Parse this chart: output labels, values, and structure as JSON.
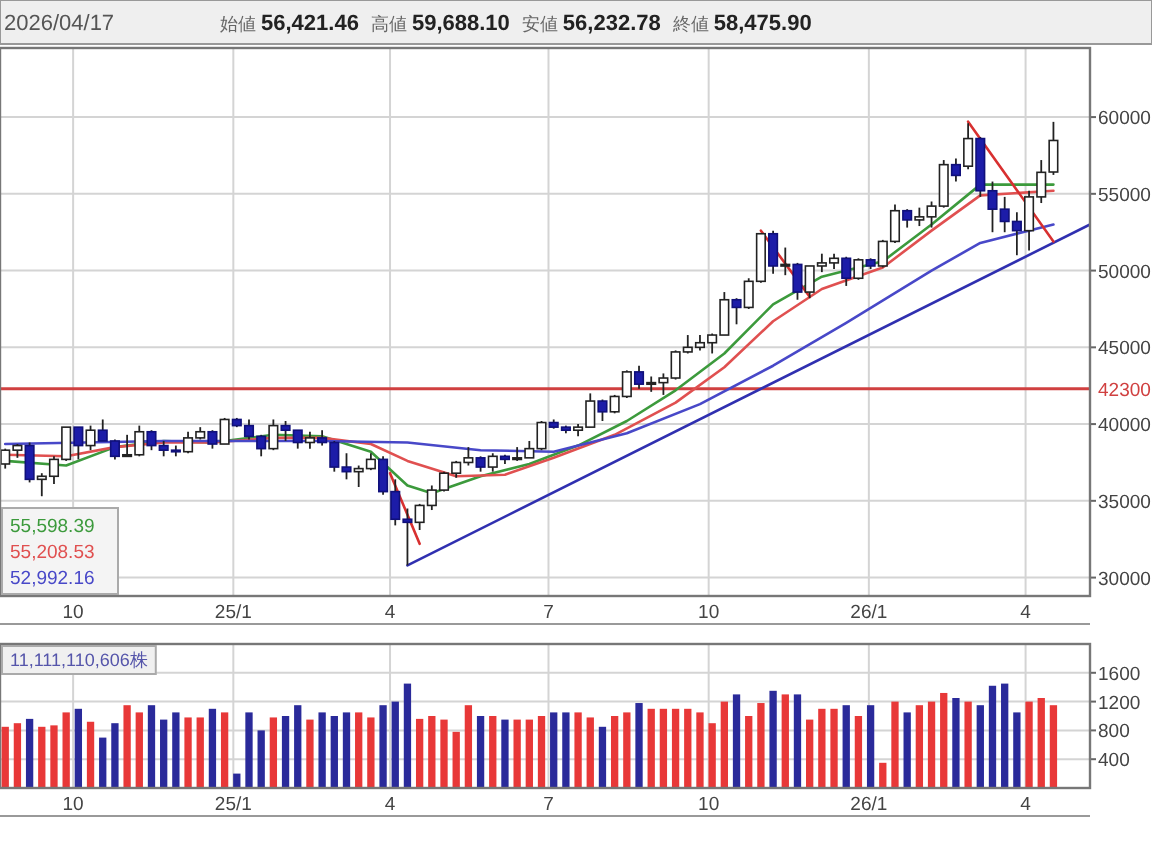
{
  "chart_data": [
    {
      "type": "candlestick",
      "title": "2026/04/17",
      "annotations": [
        "始値 56,421.46",
        "高値 59,688.10",
        "安値 56,232.78",
        "終値 58,475.90"
      ],
      "x": [
        "2024-08-23",
        "2024-08-30",
        "2024-09-06",
        "2024-09-13",
        "2024-09-20",
        "2024-09-27",
        "2024-10-04",
        "2024-10-11",
        "2024-10-18",
        "2024-10-25",
        "2024-11-01",
        "2024-11-08",
        "2024-11-15",
        "2024-11-22",
        "2024-11-29",
        "2024-12-06",
        "2024-12-13",
        "2024-12-20",
        "2024-12-27",
        "2025-01-03",
        "2025-01-10",
        "2025-01-17",
        "2025-01-24",
        "2025-01-31",
        "2025-02-07",
        "2025-02-14",
        "2025-02-21",
        "2025-02-28",
        "2025-03-07",
        "2025-03-14",
        "2025-03-21",
        "2025-03-28",
        "2025-04-04",
        "2025-04-11",
        "2025-04-18",
        "2025-04-25",
        "2025-05-02",
        "2025-05-09",
        "2025-05-16",
        "2025-05-23",
        "2025-05-30",
        "2025-06-06",
        "2025-06-13",
        "2025-06-20",
        "2025-06-27",
        "2025-07-04",
        "2025-07-11",
        "2025-07-18",
        "2025-07-25",
        "2025-08-01",
        "2025-08-08",
        "2025-08-15",
        "2025-08-22",
        "2025-08-29",
        "2025-09-05",
        "2025-09-12",
        "2025-09-19",
        "2025-09-26",
        "2025-10-03",
        "2025-10-10",
        "2025-10-17",
        "2025-10-24",
        "2025-10-31",
        "2025-11-07",
        "2025-11-14",
        "2025-11-21",
        "2025-11-28",
        "2025-12-05",
        "2025-12-12",
        "2025-12-19",
        "2025-12-26",
        "2026-01-02",
        "2026-01-09",
        "2026-01-16",
        "2026-01-23",
        "2026-01-30",
        "2026-02-06",
        "2026-02-13",
        "2026-02-20",
        "2026-02-27",
        "2026-03-06",
        "2026-03-13",
        "2026-03-20",
        "2026-03-27",
        "2026-04-03",
        "2026-04-10",
        "2026-04-17"
      ],
      "ohlc": [
        [
          37400,
          38400,
          37100,
          38300
        ],
        [
          38300,
          38700,
          37800,
          38600
        ],
        [
          38600,
          38800,
          36200,
          36400
        ],
        [
          36400,
          36800,
          35300,
          36600
        ],
        [
          36600,
          37900,
          36100,
          37700
        ],
        [
          37700,
          39800,
          37600,
          39800
        ],
        [
          39800,
          39800,
          37700,
          38600
        ],
        [
          38600,
          39900,
          38300,
          39600
        ],
        [
          39600,
          40300,
          38900,
          38900
        ],
        [
          38900,
          39000,
          37700,
          37900
        ],
        [
          37900,
          39300,
          37900,
          38000
        ],
        [
          38000,
          39900,
          37900,
          39500
        ],
        [
          39500,
          39600,
          38300,
          38600
        ],
        [
          38600,
          38900,
          37900,
          38300
        ],
        [
          38300,
          38600,
          37900,
          38200
        ],
        [
          38200,
          39500,
          38100,
          39100
        ],
        [
          39100,
          39800,
          39000,
          39500
        ],
        [
          39500,
          39600,
          38400,
          38700
        ],
        [
          38700,
          40400,
          38700,
          40300
        ],
        [
          40300,
          40400,
          39800,
          39900
        ],
        [
          39900,
          40300,
          39000,
          39200
        ],
        [
          39200,
          39300,
          37900,
          38400
        ],
        [
          38400,
          40300,
          38300,
          39900
        ],
        [
          39900,
          40200,
          38900,
          39600
        ],
        [
          39600,
          39600,
          38400,
          38800
        ],
        [
          38800,
          39500,
          38400,
          39100
        ],
        [
          39100,
          39600,
          38600,
          38800
        ],
        [
          38800,
          38900,
          36900,
          37200
        ],
        [
          37200,
          38100,
          36400,
          36900
        ],
        [
          36900,
          37300,
          35900,
          37100
        ],
        [
          37100,
          38100,
          37000,
          37700
        ],
        [
          37700,
          37900,
          35400,
          35600
        ],
        [
          35600,
          36400,
          33400,
          33800
        ],
        [
          33800,
          34500,
          30800,
          33600
        ],
        [
          33600,
          34800,
          33100,
          34700
        ],
        [
          34700,
          36000,
          34400,
          35700
        ],
        [
          35700,
          36900,
          35600,
          36800
        ],
        [
          36800,
          37600,
          36500,
          37500
        ],
        [
          37500,
          38500,
          37300,
          37800
        ],
        [
          37800,
          37900,
          36900,
          37200
        ],
        [
          37200,
          38100,
          36900,
          37900
        ],
        [
          37900,
          38000,
          37400,
          37700
        ],
        [
          37700,
          38500,
          37600,
          37800
        ],
        [
          37800,
          38900,
          37800,
          38400
        ],
        [
          38400,
          40200,
          38300,
          40100
        ],
        [
          40100,
          40300,
          39700,
          39800
        ],
        [
          39800,
          39900,
          39400,
          39600
        ],
        [
          39600,
          40000,
          39200,
          39800
        ],
        [
          39800,
          42000,
          39800,
          41500
        ],
        [
          41500,
          41600,
          40200,
          40800
        ],
        [
          40800,
          41900,
          40700,
          41800
        ],
        [
          41800,
          43500,
          41700,
          43400
        ],
        [
          43400,
          43800,
          42300,
          42600
        ],
        [
          42600,
          43100,
          42100,
          42700
        ],
        [
          42700,
          43300,
          41900,
          43000
        ],
        [
          43000,
          44800,
          42900,
          44700
        ],
        [
          44700,
          45800,
          44600,
          45000
        ],
        [
          45000,
          45800,
          44800,
          45300
        ],
        [
          45300,
          45900,
          44600,
          45800
        ],
        [
          45800,
          48600,
          45800,
          48100
        ],
        [
          48100,
          48200,
          46500,
          47600
        ],
        [
          47600,
          49500,
          47500,
          49300
        ],
        [
          49300,
          52400,
          49200,
          52400
        ],
        [
          52400,
          52600,
          49800,
          50300
        ],
        [
          50300,
          51500,
          49700,
          50400
        ],
        [
          50400,
          50500,
          48100,
          48600
        ],
        [
          48600,
          50300,
          48200,
          50300
        ],
        [
          50300,
          51100,
          49900,
          50500
        ],
        [
          50500,
          51100,
          50100,
          50800
        ],
        [
          50800,
          50900,
          49000,
          49500
        ],
        [
          49500,
          50800,
          49400,
          50700
        ],
        [
          50700,
          50800,
          50100,
          50300
        ],
        [
          50300,
          52000,
          50200,
          51900
        ],
        [
          51900,
          54300,
          51800,
          53900
        ],
        [
          53900,
          54000,
          52800,
          53300
        ],
        [
          53300,
          54100,
          52900,
          53500
        ],
        [
          53500,
          54500,
          52800,
          54200
        ],
        [
          54200,
          57200,
          54100,
          56900
        ],
        [
          56900,
          57300,
          55800,
          56200
        ],
        [
          56800,
          59600,
          56600,
          58600
        ],
        [
          58600,
          58700,
          54800,
          55200
        ],
        [
          55200,
          55800,
          52500,
          54000
        ],
        [
          54000,
          54800,
          52500,
          53200
        ],
        [
          53200,
          53800,
          51000,
          52600
        ],
        [
          52600,
          55200,
          51300,
          54800
        ],
        [
          54800,
          57200,
          54400,
          56400
        ],
        [
          56421.46,
          59688.1,
          56232.78,
          58475.9
        ]
      ],
      "series": [
        {
          "type": "line",
          "name": "55,598.39",
          "color": "#3c9a3c",
          "x": [
            "2024-08-23",
            "2024-09-27",
            "2024-10-25",
            "2024-11-22",
            "2024-12-20",
            "2025-01-24",
            "2025-02-21",
            "2025-03-21",
            "2025-04-11",
            "2025-04-25",
            "2025-05-23",
            "2025-06-20",
            "2025-07-18",
            "2025-08-15",
            "2025-09-12",
            "2025-10-10",
            "2025-11-07",
            "2025-12-05",
            "2026-01-09",
            "2026-02-06",
            "2026-03-06",
            "2026-04-17"
          ],
          "values": [
            37600,
            37300,
            38500,
            38900,
            38800,
            39300,
            39200,
            38200,
            36000,
            35500,
            36600,
            37400,
            38600,
            40200,
            42200,
            44600,
            47800,
            49600,
            50600,
            53000,
            55600,
            55600
          ]
        },
        {
          "type": "line",
          "name": "55,208.53",
          "color": "#e05050",
          "x": [
            "2024-08-23",
            "2024-09-27",
            "2024-10-25",
            "2024-11-22",
            "2024-12-20",
            "2025-01-24",
            "2025-02-21",
            "2025-03-21",
            "2025-04-11",
            "2025-05-09",
            "2025-06-06",
            "2025-07-04",
            "2025-08-08",
            "2025-09-12",
            "2025-10-10",
            "2025-11-07",
            "2025-12-05",
            "2026-01-09",
            "2026-02-06",
            "2026-03-06",
            "2026-04-17"
          ],
          "values": [
            38000,
            37900,
            38500,
            38800,
            38800,
            39100,
            39100,
            38700,
            37600,
            36600,
            36700,
            37800,
            39300,
            41400,
            43700,
            46700,
            48800,
            50200,
            52600,
            54900,
            55200
          ]
        },
        {
          "type": "line",
          "name": "52,992.16",
          "color": "#4848c8",
          "x": [
            "2024-08-23",
            "2024-11-22",
            "2025-02-21",
            "2025-04-11",
            "2025-05-23",
            "2025-07-04",
            "2025-08-15",
            "2025-09-26",
            "2025-11-07",
            "2025-12-19",
            "2026-02-06",
            "2026-03-06",
            "2026-04-17"
          ],
          "values": [
            38700,
            38900,
            38900,
            38800,
            38300,
            38200,
            39400,
            41300,
            43800,
            46600,
            50000,
            51800,
            53000
          ]
        },
        {
          "type": "line",
          "color": "#3030b0",
          "x": [
            "2025-04-11",
            "2026-05-08"
          ],
          "values": [
            30800,
            53000
          ]
        },
        {
          "type": "line",
          "color": "#d83030",
          "x": [
            "2025-04-01",
            "2025-04-18"
          ],
          "values": [
            36800,
            32200
          ]
        },
        {
          "type": "line",
          "color": "#d83030",
          "x": [
            "2025-10-31",
            "2025-11-28"
          ],
          "values": [
            52600,
            48300
          ]
        },
        {
          "type": "line",
          "color": "#d83030",
          "x": [
            "2026-02-27",
            "2026-04-17"
          ],
          "values": [
            59700,
            51900
          ]
        }
      ],
      "xlim": [
        "2024-08-20",
        "2026-05-08"
      ],
      "xticks": [
        {
          "value": "2024-10-01",
          "label": "10"
        },
        {
          "value": "2025-01-01",
          "label": "25/1"
        },
        {
          "value": "2025-04-01",
          "label": "4"
        },
        {
          "value": "2025-07-01",
          "label": "7"
        },
        {
          "value": "2025-10-01",
          "label": "10"
        },
        {
          "value": "2026-01-01",
          "label": "26/1"
        },
        {
          "value": "2026-04-01",
          "label": "4"
        }
      ],
      "ylim": [
        28800,
        64500
      ],
      "yticks": [
        30000,
        35000,
        40000,
        45000,
        50000,
        55000,
        60000
      ],
      "ref_lines": [
        {
          "axis": "y",
          "value": 42300,
          "label": "42300",
          "color": "#d04040"
        }
      ],
      "grid": true,
      "legend": "bottom left"
    },
    {
      "type": "bar",
      "annotations": [
        "11,111,110,606株"
      ],
      "x": [
        "2024-08-23",
        "2024-08-30",
        "2024-09-06",
        "2024-09-13",
        "2024-09-20",
        "2024-09-27",
        "2024-10-04",
        "2024-10-11",
        "2024-10-18",
        "2024-10-25",
        "2024-11-01",
        "2024-11-08",
        "2024-11-15",
        "2024-11-22",
        "2024-11-29",
        "2024-12-06",
        "2024-12-13",
        "2024-12-20",
        "2024-12-27",
        "2025-01-03",
        "2025-01-10",
        "2025-01-17",
        "2025-01-24",
        "2025-01-31",
        "2025-02-07",
        "2025-02-14",
        "2025-02-21",
        "2025-02-28",
        "2025-03-07",
        "2025-03-14",
        "2025-03-21",
        "2025-03-28",
        "2025-04-04",
        "2025-04-11",
        "2025-04-18",
        "2025-04-25",
        "2025-05-02",
        "2025-05-09",
        "2025-05-16",
        "2025-05-23",
        "2025-05-30",
        "2025-06-06",
        "2025-06-13",
        "2025-06-20",
        "2025-06-27",
        "2025-07-04",
        "2025-07-11",
        "2025-07-18",
        "2025-07-25",
        "2025-08-01",
        "2025-08-08",
        "2025-08-15",
        "2025-08-22",
        "2025-08-29",
        "2025-09-05",
        "2025-09-12",
        "2025-09-19",
        "2025-09-26",
        "2025-10-03",
        "2025-10-10",
        "2025-10-17",
        "2025-10-24",
        "2025-10-31",
        "2025-11-07",
        "2025-11-14",
        "2025-11-21",
        "2025-11-28",
        "2025-12-05",
        "2025-12-12",
        "2025-12-19",
        "2025-12-26",
        "2026-01-02",
        "2026-01-09",
        "2026-01-16",
        "2026-01-23",
        "2026-01-30",
        "2026-02-06",
        "2026-02-13",
        "2026-02-20",
        "2026-02-27",
        "2026-03-06",
        "2026-03-13",
        "2026-03-20",
        "2026-03-27",
        "2026-04-03",
        "2026-04-10",
        "2026-04-17"
      ],
      "values": [
        850,
        900,
        960,
        850,
        870,
        1050,
        1100,
        920,
        700,
        900,
        1150,
        1050,
        1150,
        950,
        1050,
        980,
        980,
        1100,
        1050,
        200,
        1050,
        800,
        980,
        1000,
        1150,
        950,
        1050,
        1000,
        1050,
        1050,
        980,
        1150,
        1200,
        1450,
        960,
        1000,
        950,
        780,
        1150,
        1000,
        1000,
        950,
        950,
        950,
        1000,
        1050,
        1050,
        1050,
        980,
        850,
        1000,
        1050,
        1180,
        1100,
        1100,
        1100,
        1100,
        1050,
        900,
        1200,
        1300,
        1000,
        1180,
        1350,
        1300,
        1300,
        950,
        1100,
        1100,
        1150,
        1000,
        1150,
        350,
        1200,
        1050,
        1150,
        1200,
        1320,
        1250,
        1200,
        1150,
        1420,
        1450,
        1050,
        1200,
        1250,
        1150
      ],
      "colors": [
        "#e83838",
        "#e83838",
        "#2a2a9a",
        "#e83838",
        "#e83838",
        "#e83838",
        "#2a2a9a",
        "#e83838",
        "#2a2a9a",
        "#2a2a9a",
        "#e83838",
        "#e83838",
        "#2a2a9a",
        "#2a2a9a",
        "#2a2a9a",
        "#e83838",
        "#e83838",
        "#2a2a9a",
        "#e83838",
        "#2a2a9a",
        "#2a2a9a",
        "#2a2a9a",
        "#e83838",
        "#2a2a9a",
        "#2a2a9a",
        "#e83838",
        "#2a2a9a",
        "#2a2a9a",
        "#2a2a9a",
        "#e83838",
        "#e83838",
        "#2a2a9a",
        "#2a2a9a",
        "#2a2a9a",
        "#e83838",
        "#e83838",
        "#e83838",
        "#e83838",
        "#e83838",
        "#2a2a9a",
        "#e83838",
        "#2a2a9a",
        "#e83838",
        "#e83838",
        "#e83838",
        "#2a2a9a",
        "#2a2a9a",
        "#e83838",
        "#e83838",
        "#2a2a9a",
        "#e83838",
        "#e83838",
        "#2a2a9a",
        "#e83838",
        "#e83838",
        "#e83838",
        "#e83838",
        "#e83838",
        "#e83838",
        "#e83838",
        "#2a2a9a",
        "#e83838",
        "#e83838",
        "#2a2a9a",
        "#e83838",
        "#2a2a9a",
        "#e83838",
        "#e83838",
        "#e83838",
        "#2a2a9a",
        "#e83838",
        "#2a2a9a",
        "#e83838",
        "#e83838",
        "#2a2a9a",
        "#e83838",
        "#e83838",
        "#e83838",
        "#2a2a9a",
        "#e83838",
        "#2a2a9a",
        "#2a2a9a",
        "#2a2a9a",
        "#2a2a9a",
        "#e83838",
        "#e83838",
        "#e83838"
      ],
      "xlim": [
        "2024-08-20",
        "2026-05-08"
      ],
      "xticks": [
        {
          "value": "2024-10-01",
          "label": "10"
        },
        {
          "value": "2025-01-01",
          "label": "25/1"
        },
        {
          "value": "2025-04-01",
          "label": "4"
        },
        {
          "value": "2025-07-01",
          "label": "7"
        },
        {
          "value": "2025-10-01",
          "label": "10"
        },
        {
          "value": "2026-01-01",
          "label": "26/1"
        },
        {
          "value": "2026-04-01",
          "label": "4"
        }
      ],
      "ylim": [
        0,
        2000
      ],
      "yticks": [
        400,
        800,
        1200,
        1600
      ],
      "grid": true
    }
  ]
}
